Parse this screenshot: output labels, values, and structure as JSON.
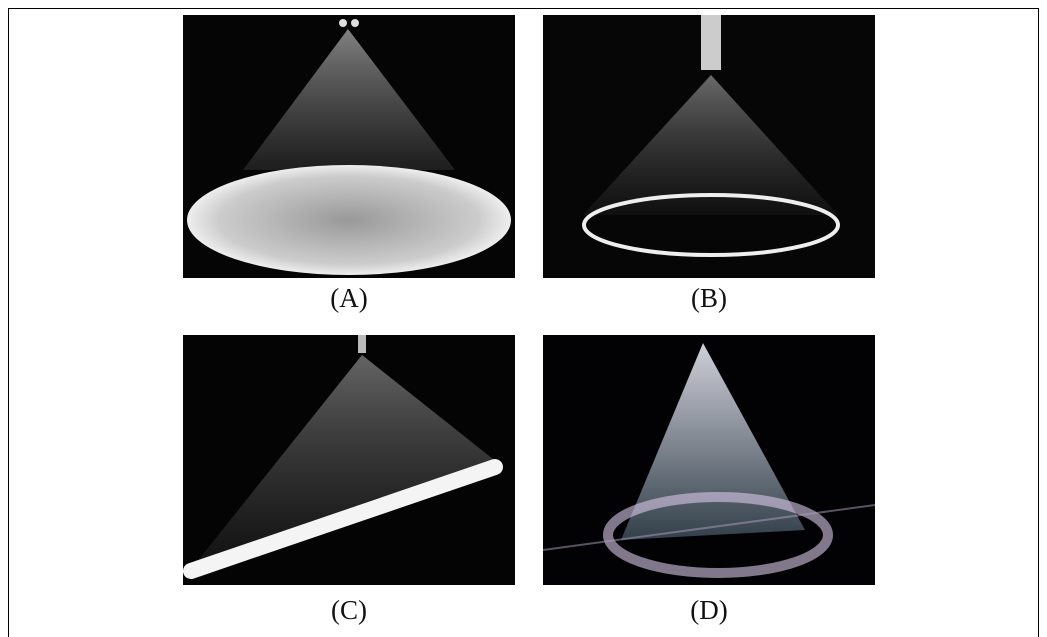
{
  "panels": [
    {
      "label": "(A)"
    },
    {
      "label": "(B)"
    },
    {
      "label": "(C)"
    },
    {
      "label": "(D)"
    }
  ]
}
